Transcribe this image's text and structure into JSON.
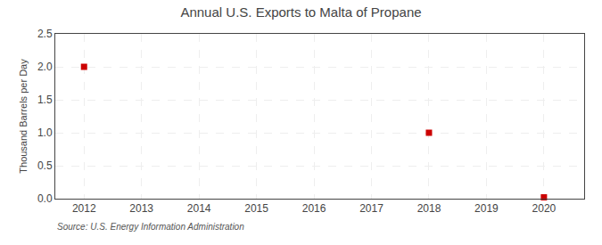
{
  "chart_data": {
    "type": "scatter",
    "title": "Annual U.S. Exports to Malta of Propane",
    "ylabel": "Thousand Barrels per Day",
    "annotations": [
      "Source: U.S. Energy Information Administration"
    ],
    "x": [
      2012,
      2018,
      2020
    ],
    "values": [
      2.0,
      1.0,
      0.02
    ],
    "color": "#cc0000",
    "marker": "square",
    "xlim": [
      2011.5,
      2020.7
    ],
    "xticks": [
      2012,
      2013,
      2014,
      2015,
      2016,
      2017,
      2018,
      2019,
      2020
    ],
    "ylim": [
      0.0,
      2.5
    ],
    "yticks": [
      {
        "value": 0.0,
        "label": "0.0"
      },
      0.5,
      {
        "value": 1.0,
        "label": "1.0"
      },
      1.5,
      {
        "value": 2.0,
        "label": "2.0"
      },
      2.5
    ],
    "grid": true
  }
}
